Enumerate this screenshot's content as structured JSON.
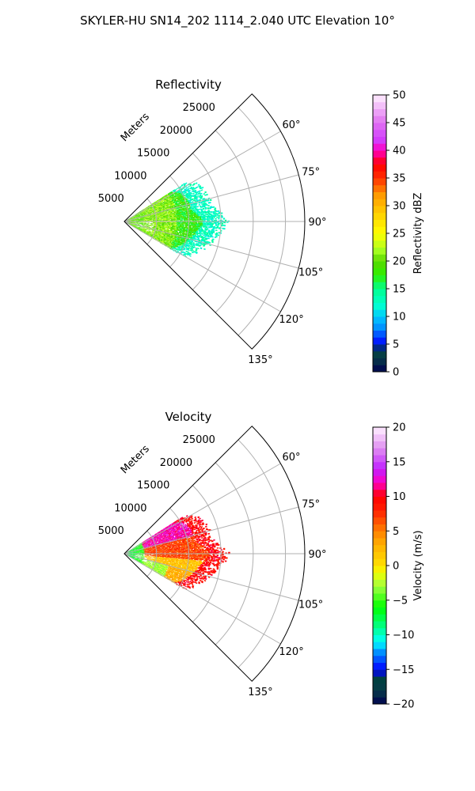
{
  "figure": {
    "suptitle": "SKYLER-HU  SN14_202  1114_2.040 UTC Elevation 10°",
    "radial_unit_label": "Meters"
  },
  "chart_data": [
    {
      "type": "polar-sector",
      "title": "Reflectivity",
      "theta_range_deg": [
        45,
        135
      ],
      "theta_zero": "north",
      "theta_direction": "clockwise",
      "theta_ticks": [
        "60°",
        "75°",
        "90°",
        "105°",
        "120°",
        "135°"
      ],
      "theta_tick_values": [
        60,
        75,
        90,
        105,
        120,
        135
      ],
      "r_range": [
        0,
        28000
      ],
      "r_ticks": [
        "5000",
        "10000",
        "15000",
        "20000",
        "25000"
      ],
      "r_tick_values": [
        5000,
        10000,
        15000,
        20000,
        25000
      ],
      "grid": true,
      "field_extent": {
        "theta_deg": [
          57,
          120
        ],
        "r_max_by_theta": [
          [
            57,
            11000
          ],
          [
            62,
            12800
          ],
          [
            70,
            13600
          ],
          [
            80,
            14000
          ],
          [
            90,
            16500
          ],
          [
            97,
            15000
          ],
          [
            105,
            13800
          ],
          [
            112,
            12600
          ],
          [
            120,
            11000
          ]
        ]
      },
      "colorbar": {
        "label": "Reflectivity dBZ",
        "range": [
          0,
          50
        ],
        "ticks": [
          "0",
          "5",
          "10",
          "15",
          "20",
          "25",
          "30",
          "35",
          "40",
          "45",
          "50"
        ],
        "tick_values": [
          0,
          5,
          10,
          15,
          20,
          25,
          30,
          35,
          40,
          45,
          50
        ],
        "stops": [
          [
            0,
            "#000050"
          ],
          [
            2.5,
            "#083c48"
          ],
          [
            4,
            "#004040"
          ],
          [
            5,
            "#0000ff"
          ],
          [
            8,
            "#0090ff"
          ],
          [
            10,
            "#00c8ff"
          ],
          [
            12,
            "#00ffd0"
          ],
          [
            15,
            "#00ff90"
          ],
          [
            17.5,
            "#2ef000"
          ],
          [
            20,
            "#58d800"
          ],
          [
            22,
            "#a8ff20"
          ],
          [
            25,
            "#ffff00"
          ],
          [
            28,
            "#ffd800"
          ],
          [
            32,
            "#ff9a00"
          ],
          [
            35,
            "#ff3000"
          ],
          [
            37.5,
            "#ff0000"
          ],
          [
            40,
            "#ff00c0"
          ],
          [
            42,
            "#d040ff"
          ],
          [
            45,
            "#e070f0"
          ],
          [
            50,
            "#fff0ff"
          ]
        ],
        "rings": [
          {
            "r": [
              0,
              3000
            ],
            "dbz": 20
          },
          {
            "r": [
              3000,
              8000
            ],
            "dbz": 21
          },
          {
            "r": [
              8000,
              12000
            ],
            "dbz": 18
          },
          {
            "r": [
              12000,
              16500
            ],
            "dbz": 14
          }
        ]
      }
    },
    {
      "type": "polar-sector",
      "title": "Velocity",
      "theta_range_deg": [
        45,
        135
      ],
      "theta_zero": "north",
      "theta_direction": "clockwise",
      "theta_ticks": [
        "60°",
        "75°",
        "90°",
        "105°",
        "120°",
        "135°"
      ],
      "theta_tick_values": [
        60,
        75,
        90,
        105,
        120,
        135
      ],
      "r_range": [
        0,
        28000
      ],
      "r_ticks": [
        "5000",
        "10000",
        "15000",
        "20000",
        "25000"
      ],
      "r_tick_values": [
        5000,
        10000,
        15000,
        20000,
        25000
      ],
      "grid": true,
      "field_extent": {
        "theta_deg": [
          57,
          120
        ],
        "r_max_by_theta": [
          [
            57,
            11000
          ],
          [
            62,
            12800
          ],
          [
            70,
            13600
          ],
          [
            80,
            14000
          ],
          [
            90,
            16500
          ],
          [
            97,
            15000
          ],
          [
            105,
            13800
          ],
          [
            112,
            12600
          ],
          [
            120,
            11000
          ]
        ]
      },
      "colorbar": {
        "label": "Velocity (m/s)",
        "range": [
          -20,
          20
        ],
        "ticks": [
          "−20",
          "−15",
          "−10",
          "−5",
          "0",
          "5",
          "10",
          "15",
          "20"
        ],
        "tick_values": [
          -20,
          -15,
          -10,
          -5,
          0,
          5,
          10,
          15,
          20
        ],
        "stops": [
          [
            -20,
            "#000050"
          ],
          [
            -18,
            "#083c48"
          ],
          [
            -16.5,
            "#004040"
          ],
          [
            -15,
            "#0000ff"
          ],
          [
            -12.5,
            "#0090ff"
          ],
          [
            -11,
            "#00ffff"
          ],
          [
            -9,
            "#00ff90"
          ],
          [
            -6,
            "#00ff00"
          ],
          [
            -3,
            "#a0ff40"
          ],
          [
            -1,
            "#f0ff00"
          ],
          [
            0,
            "#ffe000"
          ],
          [
            3,
            "#ffb000"
          ],
          [
            5,
            "#ff8000"
          ],
          [
            8,
            "#ff2000"
          ],
          [
            10,
            "#ff0000"
          ],
          [
            12,
            "#ff00c0"
          ],
          [
            14,
            "#c020ff"
          ],
          [
            17,
            "#e090f0"
          ],
          [
            20,
            "#fff0ff"
          ]
        ],
        "wedges": [
          {
            "theta": [
              57,
              75
            ],
            "r": [
              3000,
              13000
            ],
            "vel": 12
          },
          {
            "theta": [
              75,
              95
            ],
            "r": [
              3000,
              13000
            ],
            "vel": 7
          },
          {
            "theta": [
              95,
              120
            ],
            "r": [
              2000,
              12000
            ],
            "vel": 2
          },
          {
            "theta": [
              57,
              120
            ],
            "r": [
              0,
              3000
            ],
            "vel": -8
          }
        ]
      }
    }
  ]
}
